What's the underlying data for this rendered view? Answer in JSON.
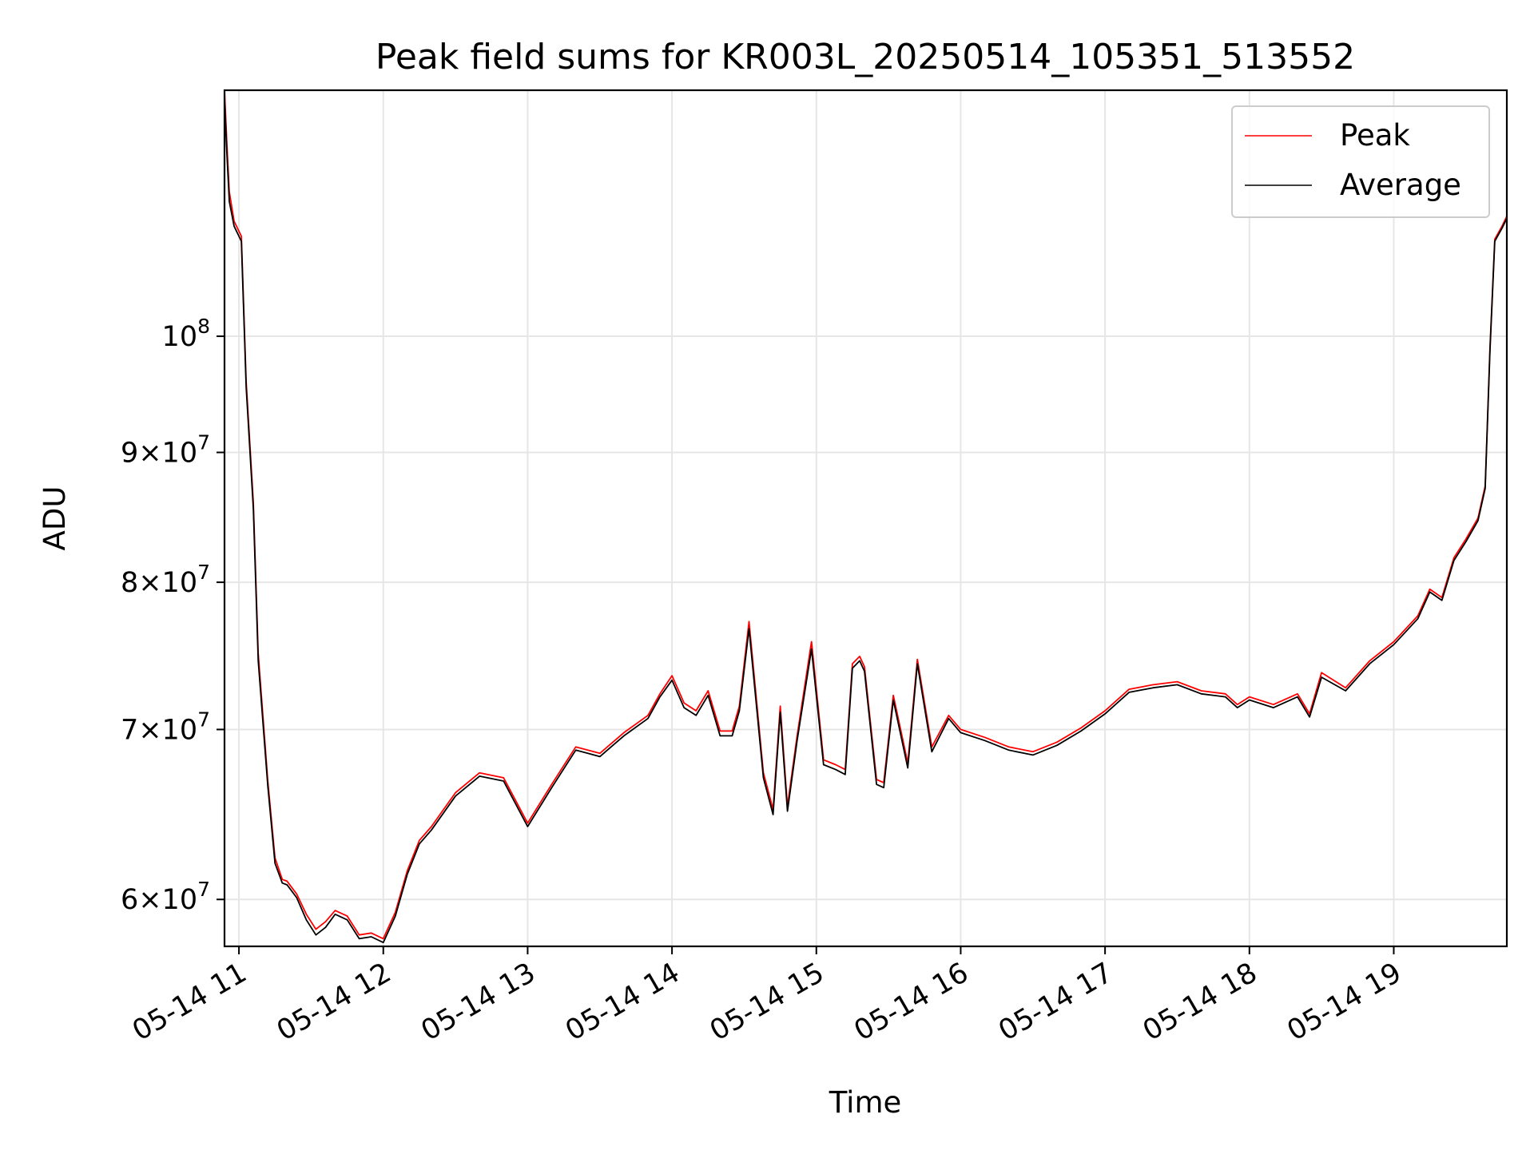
{
  "chart_data": {
    "type": "line",
    "title": "Peak field sums for KR003L_20250514_105351_513552",
    "xlabel": "Time",
    "ylabel": "ADU",
    "yscale": "log",
    "grid": true,
    "legend_position": "top-right",
    "xlim": [
      "2025-05-14 10:54",
      "2025-05-14 19:47"
    ],
    "ylim": [
      57500000,
      125000000
    ],
    "x_ticks": [
      "2025-05-14 11:00",
      "2025-05-14 12:00",
      "2025-05-14 13:00",
      "2025-05-14 14:00",
      "2025-05-14 15:00",
      "2025-05-14 16:00",
      "2025-05-14 17:00",
      "2025-05-14 18:00",
      "2025-05-14 19:00"
    ],
    "x_tick_labels": [
      "05-14 11",
      "05-14 12",
      "05-14 13",
      "05-14 14",
      "05-14 15",
      "05-14 16",
      "05-14 17",
      "05-14 18",
      "05-14 19"
    ],
    "y_ticks": [
      {
        "value": 60000000,
        "mantissa": "6",
        "base": "10",
        "exp": "7"
      },
      {
        "value": 70000000,
        "mantissa": "7",
        "base": "10",
        "exp": "7"
      },
      {
        "value": 80000000,
        "mantissa": "8",
        "base": "10",
        "exp": "7"
      },
      {
        "value": 90000000,
        "mantissa": "9",
        "base": "10",
        "exp": "7"
      },
      {
        "value": 100000000,
        "mantissa": "",
        "base": "10",
        "exp": "8"
      }
    ],
    "colors": {
      "Peak": "#ff0000",
      "Average": "#000000",
      "grid": "#e6e6e6"
    },
    "series": [
      {
        "name": "Peak",
        "color": "#ff0000",
        "x": [
          "2025-05-14 10:54",
          "2025-05-14 10:55",
          "2025-05-14 10:56",
          "2025-05-14 10:58",
          "2025-05-14 11:01",
          "2025-05-14 11:03",
          "2025-05-14 11:06",
          "2025-05-14 11:08",
          "2025-05-14 11:12",
          "2025-05-14 11:15",
          "2025-05-14 11:18",
          "2025-05-14 11:20",
          "2025-05-14 11:24",
          "2025-05-14 11:28",
          "2025-05-14 11:32",
          "2025-05-14 11:36",
          "2025-05-14 11:40",
          "2025-05-14 11:45",
          "2025-05-14 11:50",
          "2025-05-14 11:55",
          "2025-05-14 12:00",
          "2025-05-14 12:05",
          "2025-05-14 12:10",
          "2025-05-14 12:15",
          "2025-05-14 12:20",
          "2025-05-14 12:30",
          "2025-05-14 12:40",
          "2025-05-14 12:50",
          "2025-05-14 13:00",
          "2025-05-14 13:10",
          "2025-05-14 13:20",
          "2025-05-14 13:25",
          "2025-05-14 13:30",
          "2025-05-14 13:40",
          "2025-05-14 13:50",
          "2025-05-14 13:55",
          "2025-05-14 14:00",
          "2025-05-14 14:05",
          "2025-05-14 14:10",
          "2025-05-14 14:15",
          "2025-05-14 14:20",
          "2025-05-14 14:25",
          "2025-05-14 14:28",
          "2025-05-14 14:32",
          "2025-05-14 14:38",
          "2025-05-14 14:42",
          "2025-05-14 14:45",
          "2025-05-14 14:48",
          "2025-05-14 14:52",
          "2025-05-14 14:58",
          "2025-05-14 15:03",
          "2025-05-14 15:08",
          "2025-05-14 15:12",
          "2025-05-14 15:15",
          "2025-05-14 15:18",
          "2025-05-14 15:20",
          "2025-05-14 15:25",
          "2025-05-14 15:28",
          "2025-05-14 15:32",
          "2025-05-14 15:38",
          "2025-05-14 15:42",
          "2025-05-14 15:48",
          "2025-05-14 15:55",
          "2025-05-14 16:00",
          "2025-05-14 16:10",
          "2025-05-14 16:20",
          "2025-05-14 16:30",
          "2025-05-14 16:40",
          "2025-05-14 16:50",
          "2025-05-14 17:00",
          "2025-05-14 17:10",
          "2025-05-14 17:20",
          "2025-05-14 17:30",
          "2025-05-14 17:40",
          "2025-05-14 17:50",
          "2025-05-14 17:55",
          "2025-05-14 18:00",
          "2025-05-14 18:10",
          "2025-05-14 18:20",
          "2025-05-14 18:25",
          "2025-05-14 18:30",
          "2025-05-14 18:40",
          "2025-05-14 18:50",
          "2025-05-14 19:00",
          "2025-05-14 19:10",
          "2025-05-14 19:15",
          "2025-05-14 19:20",
          "2025-05-14 19:25",
          "2025-05-14 19:30",
          "2025-05-14 19:35",
          "2025-05-14 19:38",
          "2025-05-14 19:40",
          "2025-05-14 19:42",
          "2025-05-14 19:45",
          "2025-05-14 19:47"
        ],
        "values": [
          125000000,
          119000000,
          114000000,
          111000000,
          109500000,
          96000000,
          86000000,
          75000000,
          66800000,
          62300000,
          61100000,
          61000000,
          60300000,
          59200000,
          58400000,
          58800000,
          59400000,
          59100000,
          58100000,
          58200000,
          57900000,
          59300000,
          61600000,
          63300000,
          64100000,
          66100000,
          67300000,
          67000000,
          64300000,
          66600000,
          68900000,
          68700000,
          68500000,
          69800000,
          70900000,
          72300000,
          73500000,
          71700000,
          71200000,
          72500000,
          69900000,
          69900000,
          71500000,
          77200000,
          67300000,
          65100000,
          71500000,
          65300000,
          69600000,
          75800000,
          68100000,
          67800000,
          67500000,
          74300000,
          74800000,
          74100000,
          66900000,
          66700000,
          72200000,
          67900000,
          74600000,
          68900000,
          70900000,
          70000000,
          69500000,
          68900000,
          68600000,
          69200000,
          70100000,
          71200000,
          72600000,
          72900000,
          73100000,
          72500000,
          72300000,
          71600000,
          72100000,
          71600000,
          72300000,
          71000000,
          73700000,
          72700000,
          74500000,
          75800000,
          77600000,
          79500000,
          78900000,
          81800000,
          83200000,
          84800000,
          87300000,
          99000000,
          109200000,
          110500000,
          111500000
        ]
      },
      {
        "name": "Average",
        "color": "#000000",
        "x": [
          "2025-05-14 10:54",
          "2025-05-14 10:55",
          "2025-05-14 10:56",
          "2025-05-14 10:58",
          "2025-05-14 11:01",
          "2025-05-14 11:03",
          "2025-05-14 11:06",
          "2025-05-14 11:08",
          "2025-05-14 11:12",
          "2025-05-14 11:15",
          "2025-05-14 11:18",
          "2025-05-14 11:20",
          "2025-05-14 11:24",
          "2025-05-14 11:28",
          "2025-05-14 11:32",
          "2025-05-14 11:36",
          "2025-05-14 11:40",
          "2025-05-14 11:45",
          "2025-05-14 11:50",
          "2025-05-14 11:55",
          "2025-05-14 12:00",
          "2025-05-14 12:05",
          "2025-05-14 12:10",
          "2025-05-14 12:15",
          "2025-05-14 12:20",
          "2025-05-14 12:30",
          "2025-05-14 12:40",
          "2025-05-14 12:50",
          "2025-05-14 13:00",
          "2025-05-14 13:10",
          "2025-05-14 13:20",
          "2025-05-14 13:25",
          "2025-05-14 13:30",
          "2025-05-14 13:40",
          "2025-05-14 13:50",
          "2025-05-14 13:55",
          "2025-05-14 14:00",
          "2025-05-14 14:05",
          "2025-05-14 14:10",
          "2025-05-14 14:15",
          "2025-05-14 14:20",
          "2025-05-14 14:25",
          "2025-05-14 14:28",
          "2025-05-14 14:32",
          "2025-05-14 14:38",
          "2025-05-14 14:42",
          "2025-05-14 14:45",
          "2025-05-14 14:48",
          "2025-05-14 14:52",
          "2025-05-14 14:58",
          "2025-05-14 15:03",
          "2025-05-14 15:08",
          "2025-05-14 15:12",
          "2025-05-14 15:15",
          "2025-05-14 15:18",
          "2025-05-14 15:20",
          "2025-05-14 15:25",
          "2025-05-14 15:28",
          "2025-05-14 15:32",
          "2025-05-14 15:38",
          "2025-05-14 15:42",
          "2025-05-14 15:48",
          "2025-05-14 15:55",
          "2025-05-14 16:00",
          "2025-05-14 16:10",
          "2025-05-14 16:20",
          "2025-05-14 16:30",
          "2025-05-14 16:40",
          "2025-05-14 16:50",
          "2025-05-14 17:00",
          "2025-05-14 17:10",
          "2025-05-14 17:20",
          "2025-05-14 17:30",
          "2025-05-14 17:40",
          "2025-05-14 17:50",
          "2025-05-14 17:55",
          "2025-05-14 18:00",
          "2025-05-14 18:10",
          "2025-05-14 18:20",
          "2025-05-14 18:25",
          "2025-05-14 18:30",
          "2025-05-14 18:40",
          "2025-05-14 18:50",
          "2025-05-14 19:00",
          "2025-05-14 19:10",
          "2025-05-14 19:15",
          "2025-05-14 19:20",
          "2025-05-14 19:25",
          "2025-05-14 19:30",
          "2025-05-14 19:35",
          "2025-05-14 19:38",
          "2025-05-14 19:40",
          "2025-05-14 19:42",
          "2025-05-14 19:45",
          "2025-05-14 19:47"
        ],
        "values": [
          124000000,
          118000000,
          113000000,
          110500000,
          109000000,
          95500000,
          85500000,
          74500000,
          66500000,
          62000000,
          60900000,
          60800000,
          60100000,
          58900000,
          58100000,
          58500000,
          59200000,
          58900000,
          57900000,
          58000000,
          57700000,
          59100000,
          61400000,
          63100000,
          63900000,
          65900000,
          67100000,
          66800000,
          64100000,
          66400000,
          68700000,
          68500000,
          68300000,
          69600000,
          70700000,
          72100000,
          73200000,
          71400000,
          70900000,
          72200000,
          69600000,
          69600000,
          71200000,
          76700000,
          67000000,
          64800000,
          71100000,
          65000000,
          69300000,
          75300000,
          67800000,
          67500000,
          67200000,
          74000000,
          74500000,
          73800000,
          66600000,
          66400000,
          71900000,
          67600000,
          74300000,
          68600000,
          70700000,
          69800000,
          69300000,
          68700000,
          68400000,
          69000000,
          69900000,
          71000000,
          72400000,
          72700000,
          72900000,
          72300000,
          72100000,
          71400000,
          71900000,
          71400000,
          72100000,
          70800000,
          73400000,
          72500000,
          74300000,
          75600000,
          77400000,
          79300000,
          78700000,
          81600000,
          83000000,
          84600000,
          87100000,
          98700000,
          109000000,
          110300000,
          111300000
        ]
      }
    ]
  }
}
